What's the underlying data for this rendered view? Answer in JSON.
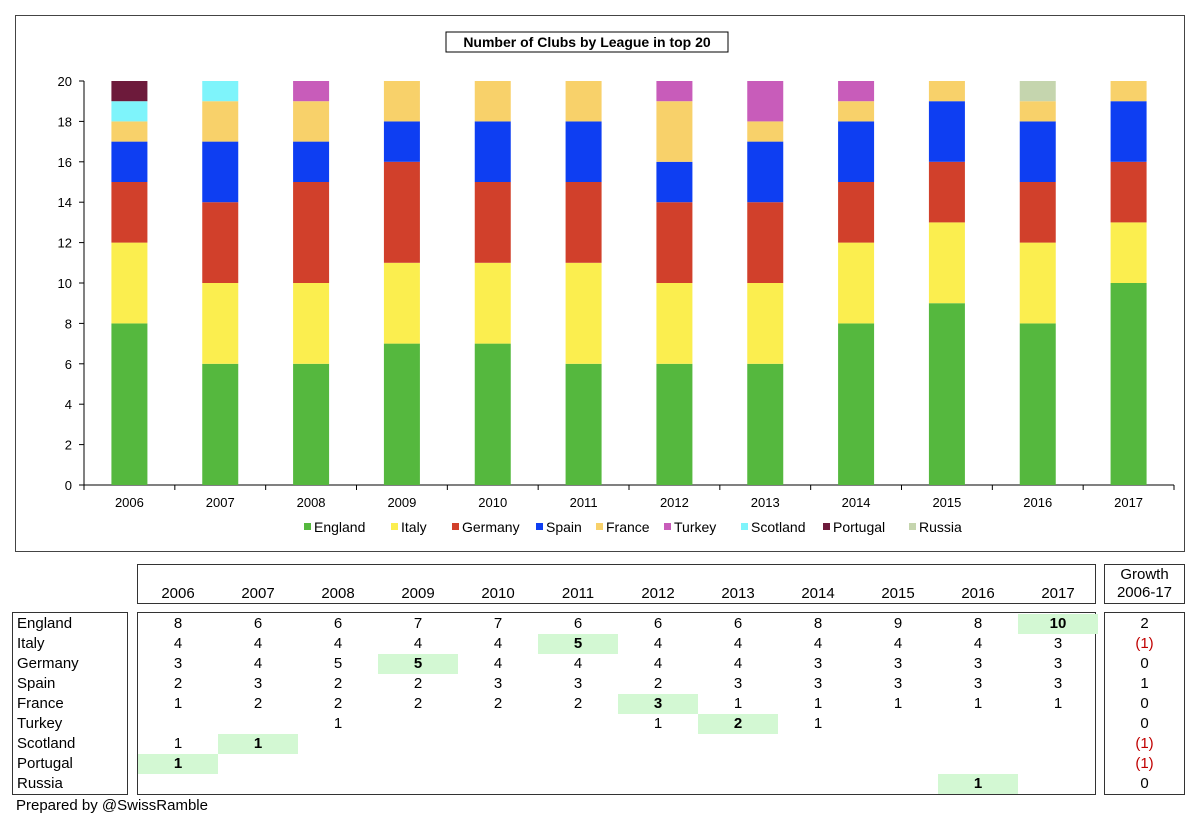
{
  "chart_data": {
    "type": "bar",
    "stacked": true,
    "title": "Number of Clubs by League in top 20",
    "categories": [
      "2006",
      "2007",
      "2008",
      "2009",
      "2010",
      "2011",
      "2012",
      "2013",
      "2014",
      "2015",
      "2016",
      "2017"
    ],
    "ylim": [
      0,
      20
    ],
    "yticks": [
      0,
      2,
      4,
      6,
      8,
      10,
      12,
      14,
      16,
      18,
      20
    ],
    "legend_position": "bottom",
    "grid": false,
    "series": [
      {
        "name": "England",
        "color": "#55b83e",
        "values": [
          8,
          6,
          6,
          7,
          7,
          6,
          6,
          6,
          8,
          9,
          8,
          10
        ]
      },
      {
        "name": "Italy",
        "color": "#fbee4f",
        "values": [
          4,
          4,
          4,
          4,
          4,
          5,
          4,
          4,
          4,
          4,
          4,
          3
        ]
      },
      {
        "name": "Germany",
        "color": "#d1402b",
        "values": [
          3,
          4,
          5,
          5,
          4,
          4,
          4,
          4,
          3,
          3,
          3,
          3
        ]
      },
      {
        "name": "Spain",
        "color": "#0e3ef2",
        "values": [
          2,
          3,
          2,
          2,
          3,
          3,
          2,
          3,
          3,
          3,
          3,
          3
        ]
      },
      {
        "name": "France",
        "color": "#f8d16a",
        "values": [
          1,
          2,
          2,
          2,
          2,
          2,
          3,
          1,
          1,
          1,
          1,
          1
        ]
      },
      {
        "name": "Turkey",
        "color": "#c85cba",
        "values": [
          0,
          0,
          1,
          0,
          0,
          0,
          1,
          2,
          1,
          0,
          0,
          0
        ]
      },
      {
        "name": "Scotland",
        "color": "#7ef4fb",
        "values": [
          1,
          1,
          0,
          0,
          0,
          0,
          0,
          0,
          0,
          0,
          0,
          0
        ]
      },
      {
        "name": "Portugal",
        "color": "#6d1a3b",
        "values": [
          1,
          0,
          0,
          0,
          0,
          0,
          0,
          0,
          0,
          0,
          0,
          0
        ]
      },
      {
        "name": "Russia",
        "color": "#c5d5ae",
        "values": [
          0,
          0,
          0,
          0,
          0,
          0,
          0,
          0,
          0,
          0,
          1,
          0
        ]
      }
    ]
  },
  "table": {
    "years": [
      "2006",
      "2007",
      "2008",
      "2009",
      "2010",
      "2011",
      "2012",
      "2013",
      "2014",
      "2015",
      "2016",
      "2017"
    ],
    "growth_header": [
      "Growth",
      "2006-17"
    ],
    "rows": [
      {
        "name": "England",
        "cells": [
          "8",
          "6",
          "6",
          "7",
          "7",
          "6",
          "6",
          "6",
          "8",
          "9",
          "8",
          "10"
        ],
        "highlight": 11,
        "growth": "2"
      },
      {
        "name": "Italy",
        "cells": [
          "4",
          "4",
          "4",
          "4",
          "4",
          "5",
          "4",
          "4",
          "4",
          "4",
          "4",
          "3"
        ],
        "highlight": 5,
        "growth": "(1)"
      },
      {
        "name": "Germany",
        "cells": [
          "3",
          "4",
          "5",
          "5",
          "4",
          "4",
          "4",
          "4",
          "3",
          "3",
          "3",
          "3"
        ],
        "highlight": 3,
        "growth": "0"
      },
      {
        "name": "Spain",
        "cells": [
          "2",
          "3",
          "2",
          "2",
          "3",
          "3",
          "2",
          "3",
          "3",
          "3",
          "3",
          "3"
        ],
        "highlight": -1,
        "growth": "1"
      },
      {
        "name": "France",
        "cells": [
          "1",
          "2",
          "2",
          "2",
          "2",
          "2",
          "3",
          "1",
          "1",
          "1",
          "1",
          "1"
        ],
        "highlight": 6,
        "growth": "0"
      },
      {
        "name": "Turkey",
        "cells": [
          "",
          "",
          "1",
          "",
          "",
          "",
          "1",
          "2",
          "1",
          "",
          "",
          ""
        ],
        "highlight": 7,
        "growth": "0"
      },
      {
        "name": "Scotland",
        "cells": [
          "1",
          "1",
          "",
          "",
          "",
          "",
          "",
          "",
          "",
          "",
          "",
          ""
        ],
        "highlight": 1,
        "growth": "(1)"
      },
      {
        "name": "Portugal",
        "cells": [
          "1",
          "",
          "",
          "",
          "",
          "",
          "",
          "",
          "",
          "",
          "",
          ""
        ],
        "highlight": 0,
        "growth": "(1)"
      },
      {
        "name": "Russia",
        "cells": [
          "",
          "",
          "",
          "",
          "",
          "",
          "",
          "",
          "",
          "",
          "1",
          ""
        ],
        "highlight": 10,
        "growth": "0"
      }
    ]
  },
  "footer": "Prepared by @SwissRamble"
}
